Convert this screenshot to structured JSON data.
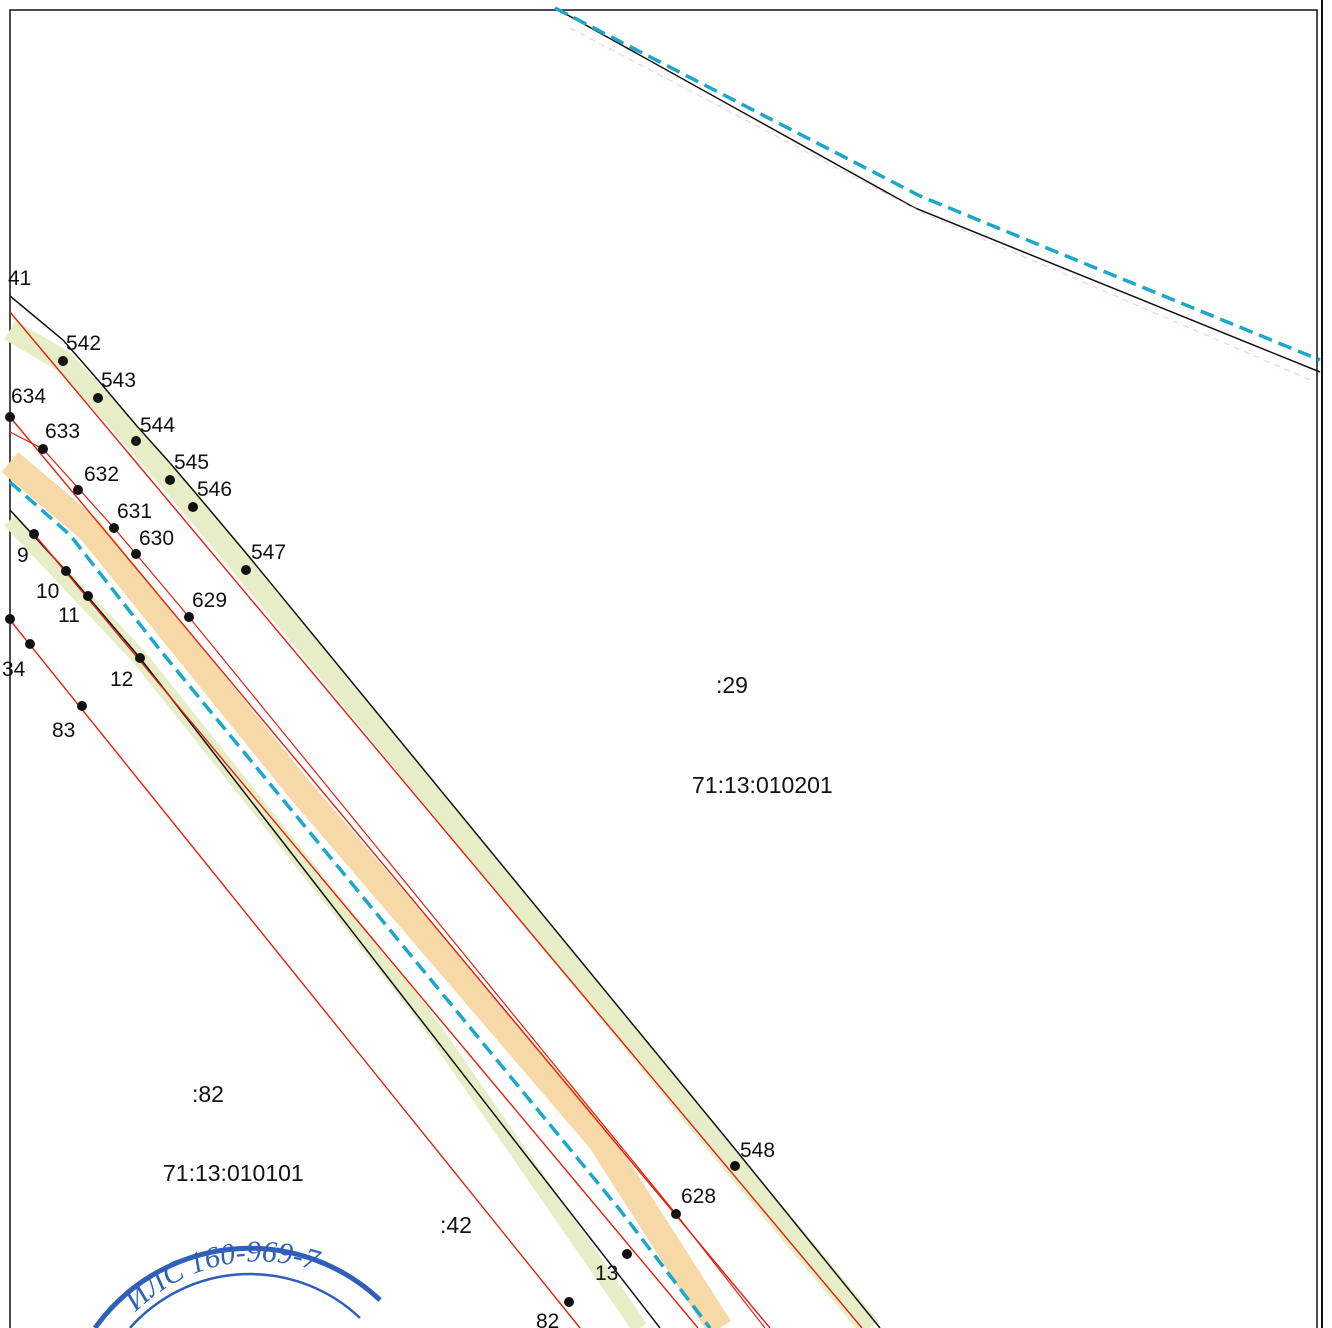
{
  "map": {
    "parcels": [
      {
        "id": "parcel-29",
        "number": ":29",
        "quarter": "71:13:010201"
      },
      {
        "id": "parcel-82",
        "number": ":82",
        "quarter": "71:13:010101"
      },
      {
        "id": "parcel-42",
        "number": ":42"
      }
    ],
    "points": {
      "p541": "41",
      "p542": "542",
      "p543": "543",
      "p544": "544",
      "p545": "545",
      "p546": "546",
      "p547": "547",
      "p548": "548",
      "p634": "634",
      "p633": "633",
      "p632": "632",
      "p631": "631",
      "p630": "630",
      "p629": "629",
      "p628": "628",
      "p9": "9",
      "p10": "10",
      "p11": "11",
      "p12": "12",
      "p13": "13",
      "p84": "34",
      "p83": "83",
      "p82": "82"
    },
    "colors": {
      "boundary": "#111111",
      "zone_line": "#e02010",
      "dashed_line": "#1aa7c9",
      "band_green": "#e7edc6",
      "band_orange": "#f6d9a6",
      "stamp": "#2f5fb8"
    },
    "stamp": {
      "text": "ИЛС 160-969-7"
    }
  }
}
